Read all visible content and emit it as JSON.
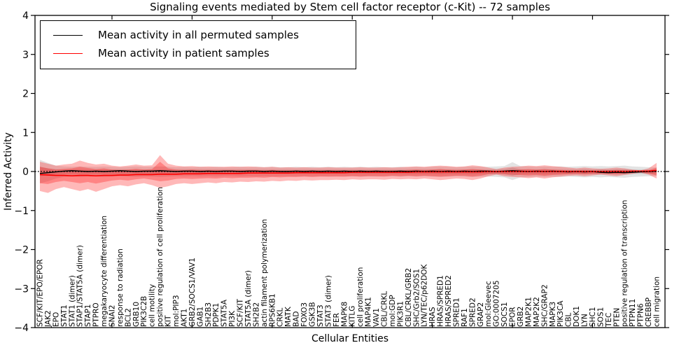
{
  "figure": {
    "title": "Signaling events mediated by Stem cell factor receptor (c-Kit) -- 72 samples",
    "xlabel": "Cellular Entities",
    "ylabel": "Inferred Activity",
    "legend": [
      {
        "label": "Mean activity in all permuted samples",
        "color": "#000000"
      },
      {
        "label": "Mean activity in patient samples",
        "color": "#ff0000"
      }
    ]
  },
  "chart_data": {
    "type": "line",
    "title": "Signaling events mediated by Stem cell factor receptor (c-Kit) -- 72 samples",
    "xlabel": "Cellular Entities",
    "ylabel": "Inferred Activity",
    "ylim": [
      -4,
      4
    ],
    "yticks": [
      -4,
      -3,
      -2,
      -1,
      0,
      1,
      2,
      3,
      4
    ],
    "ytick_labels": [
      "−4",
      "−3",
      "−2",
      "−1",
      "0",
      "1",
      "2",
      "3",
      "4"
    ],
    "xticks": [
      10,
      20,
      30,
      40,
      50,
      60,
      70
    ],
    "grid": false,
    "legend_position": "upper left",
    "zero_line": {
      "style": "dotted",
      "color": "#000000",
      "y": 0
    },
    "colors": {
      "permuted_line": "#000000",
      "patient_line": "#ff0000",
      "permuted_band": "rgba(0,0,0,0.11)",
      "patient_band": "rgba(255,0,0,0.28)"
    },
    "categories": [
      "SCF/KIT/EPO/EPOR",
      "JAK2",
      "EPO",
      "STAT1",
      "STAT1 (dimer)",
      "STAP1/STAT5A (dimer)",
      "STAP1",
      "PTPRO",
      "megakaryocyte differentiation",
      "SNAI2",
      "response to radiation",
      "BCL2",
      "GRB10",
      "PIK3C2B",
      "cell motility",
      "positive regulation of cell proliferation",
      "KIT",
      "mol:PIP3",
      "AKT1",
      "GRB2/SOCS1/VAV1",
      "GAB1",
      "SH2B3",
      "PDPK1",
      "STAT5A",
      "PI3K",
      "SCF/KIT",
      "STAT5A (dimer)",
      "SH2B2",
      "actin filament polymerization",
      "RPS6KB1",
      "CRKL",
      "MATK",
      "BAD",
      "FOXO3",
      "GSK3B",
      "STAT3",
      "STAT3 (dimer)",
      "FER",
      "MAPK8",
      "KITLG",
      "cell proliferation",
      "MAP4K1",
      "VAV1",
      "CBL/CRKL",
      "mol:GDP",
      "PIK3R1",
      "CBL/CRKL/GRB2",
      "SHC/Grb2/SOS1",
      "LYN/TEC/p62DOK",
      "HRAS",
      "HRAS/SPRED1",
      "HRAS/SPRED2",
      "SPRED1",
      "RAF1",
      "SPRED2",
      "GRAP2",
      "mol:Gleevec",
      "GO:0007205",
      "SOCS1",
      "EPOR",
      "GRB2",
      "MAP2K1",
      "MAP2K2",
      "SHC/GRAP2",
      "MAPK3",
      "PIK3CA",
      "CBL",
      "DOK1",
      "LYN",
      "SHC1",
      "SOS1",
      "TEC",
      "PTEN",
      "positive regulation of transcription",
      "PTPN11",
      "PTPN6",
      "CREBBP",
      "cell migration"
    ],
    "series": [
      {
        "name": "Mean activity in all permuted samples",
        "color": "#000000",
        "values": [
          -0.05,
          -0.03,
          -0.01,
          0.01,
          0.02,
          0.01,
          0.0,
          0.01,
          0.0,
          0.01,
          0.02,
          0.01,
          0.0,
          0.01,
          0.01,
          0.02,
          0.01,
          0.0,
          0.01,
          0.01,
          0.0,
          0.01,
          0.0,
          0.01,
          0.01,
          0.0,
          0.01,
          0.01,
          0.0,
          0.01,
          0.0,
          0.0,
          0.01,
          0.0,
          0.01,
          0.0,
          0.01,
          0.0,
          0.01,
          0.0,
          0.01,
          0.0,
          0.01,
          0.0,
          0.0,
          0.01,
          0.0,
          0.01,
          0.0,
          0.01,
          0.0,
          0.01,
          0.0,
          0.01,
          0.0,
          0.01,
          0.01,
          0.0,
          0.01,
          0.02,
          0.01,
          0.0,
          0.01,
          0.0,
          0.01,
          0.0,
          -0.01,
          0.0,
          -0.01,
          0.0,
          -0.02,
          -0.03,
          -0.02,
          -0.03,
          -0.02,
          -0.01,
          0.0,
          0.01
        ]
      },
      {
        "name": "Mean activity in patient samples",
        "color": "#ff0000",
        "values": [
          -0.08,
          -0.09,
          -0.1,
          -0.1,
          -0.11,
          -0.1,
          -0.1,
          -0.11,
          -0.1,
          -0.1,
          -0.09,
          -0.09,
          -0.08,
          -0.08,
          -0.08,
          -0.07,
          -0.07,
          -0.07,
          -0.06,
          -0.06,
          -0.06,
          -0.05,
          -0.05,
          -0.05,
          -0.05,
          -0.05,
          -0.04,
          -0.04,
          -0.04,
          -0.04,
          -0.04,
          -0.04,
          -0.03,
          -0.03,
          -0.03,
          -0.03,
          -0.03,
          -0.03,
          -0.03,
          -0.02,
          -0.02,
          -0.02,
          -0.02,
          -0.02,
          -0.02,
          -0.02,
          -0.02,
          -0.01,
          -0.01,
          -0.01,
          -0.01,
          -0.01,
          -0.01,
          -0.01,
          -0.01,
          -0.01,
          0.0,
          0.0,
          0.0,
          0.0,
          0.0,
          0.0,
          0.0,
          0.0,
          0.0,
          0.0,
          0.0,
          0.0,
          0.0,
          0.0,
          0.0,
          0.0,
          0.0,
          0.0,
          0.01,
          0.01,
          0.01,
          0.03
        ]
      }
    ],
    "bands": [
      {
        "name": "permuted-outer",
        "color": "rgba(0,0,0,0.11)",
        "upper": [
          0.3,
          0.22,
          0.15,
          0.13,
          0.12,
          0.13,
          0.12,
          0.12,
          0.13,
          0.12,
          0.11,
          0.12,
          0.13,
          0.12,
          0.12,
          0.13,
          0.12,
          0.11,
          0.12,
          0.11,
          0.12,
          0.11,
          0.12,
          0.11,
          0.11,
          0.12,
          0.11,
          0.12,
          0.11,
          0.12,
          0.11,
          0.11,
          0.12,
          0.11,
          0.12,
          0.11,
          0.12,
          0.11,
          0.12,
          0.11,
          0.12,
          0.11,
          0.12,
          0.11,
          0.11,
          0.12,
          0.11,
          0.12,
          0.11,
          0.12,
          0.13,
          0.12,
          0.11,
          0.12,
          0.13,
          0.12,
          0.12,
          0.13,
          0.14,
          0.24,
          0.14,
          0.13,
          0.12,
          0.13,
          0.12,
          0.13,
          0.12,
          0.13,
          0.14,
          0.13,
          0.14,
          0.13,
          0.14,
          0.15,
          0.13,
          0.12,
          0.11,
          0.1
        ],
        "lower": [
          -0.3,
          -0.25,
          -0.18,
          -0.14,
          -0.13,
          -0.14,
          -0.13,
          -0.13,
          -0.14,
          -0.13,
          -0.12,
          -0.13,
          -0.14,
          -0.13,
          -0.13,
          -0.14,
          -0.13,
          -0.12,
          -0.13,
          -0.12,
          -0.13,
          -0.12,
          -0.13,
          -0.12,
          -0.12,
          -0.13,
          -0.12,
          -0.13,
          -0.12,
          -0.13,
          -0.12,
          -0.12,
          -0.13,
          -0.12,
          -0.13,
          -0.12,
          -0.13,
          -0.12,
          -0.13,
          -0.12,
          -0.13,
          -0.12,
          -0.13,
          -0.12,
          -0.12,
          -0.13,
          -0.12,
          -0.13,
          -0.12,
          -0.13,
          -0.14,
          -0.13,
          -0.12,
          -0.13,
          -0.14,
          -0.13,
          -0.13,
          -0.14,
          -0.15,
          -0.22,
          -0.15,
          -0.14,
          -0.13,
          -0.14,
          -0.13,
          -0.14,
          -0.13,
          -0.14,
          -0.15,
          -0.14,
          -0.15,
          -0.14,
          -0.15,
          -0.16,
          -0.14,
          -0.13,
          -0.12,
          -0.11
        ]
      },
      {
        "name": "permuted-inner",
        "color": "rgba(0,0,0,0.11)",
        "upper": [
          0.12,
          0.08,
          0.06,
          0.05,
          0.05,
          0.05,
          0.05,
          0.05,
          0.05,
          0.05,
          0.05,
          0.05,
          0.05,
          0.05,
          0.05,
          0.05,
          0.05,
          0.05,
          0.05,
          0.05,
          0.05,
          0.05,
          0.05,
          0.05,
          0.05,
          0.05,
          0.05,
          0.05,
          0.05,
          0.05,
          0.05,
          0.05,
          0.05,
          0.05,
          0.05,
          0.05,
          0.05,
          0.05,
          0.05,
          0.05,
          0.05,
          0.05,
          0.05,
          0.05,
          0.05,
          0.05,
          0.05,
          0.05,
          0.05,
          0.05,
          0.06,
          0.05,
          0.05,
          0.05,
          0.06,
          0.05,
          0.05,
          0.06,
          0.06,
          0.1,
          0.06,
          0.05,
          0.05,
          0.06,
          0.05,
          0.05,
          0.05,
          0.05,
          0.06,
          0.05,
          0.06,
          0.05,
          0.06,
          0.06,
          0.05,
          0.05,
          0.05,
          0.04
        ],
        "lower": [
          -0.12,
          -0.09,
          -0.07,
          -0.06,
          -0.06,
          -0.06,
          -0.06,
          -0.06,
          -0.06,
          -0.06,
          -0.06,
          -0.06,
          -0.06,
          -0.06,
          -0.06,
          -0.06,
          -0.06,
          -0.06,
          -0.06,
          -0.06,
          -0.06,
          -0.06,
          -0.06,
          -0.06,
          -0.06,
          -0.06,
          -0.06,
          -0.06,
          -0.06,
          -0.06,
          -0.06,
          -0.06,
          -0.06,
          -0.06,
          -0.06,
          -0.06,
          -0.06,
          -0.06,
          -0.06,
          -0.06,
          -0.06,
          -0.06,
          -0.06,
          -0.06,
          -0.06,
          -0.06,
          -0.06,
          -0.06,
          -0.06,
          -0.06,
          -0.07,
          -0.06,
          -0.06,
          -0.06,
          -0.07,
          -0.06,
          -0.06,
          -0.07,
          -0.07,
          -0.11,
          -0.07,
          -0.06,
          -0.06,
          -0.07,
          -0.06,
          -0.06,
          -0.06,
          -0.06,
          -0.07,
          -0.06,
          -0.07,
          -0.06,
          -0.07,
          -0.07,
          -0.06,
          -0.06,
          -0.06,
          -0.05
        ]
      },
      {
        "name": "patient-outer",
        "color": "rgba(255,0,0,0.28)",
        "upper": [
          0.25,
          0.2,
          0.15,
          0.18,
          0.2,
          0.28,
          0.22,
          0.18,
          0.2,
          0.15,
          0.13,
          0.15,
          0.18,
          0.15,
          0.16,
          0.42,
          0.2,
          0.15,
          0.13,
          0.14,
          0.12,
          0.13,
          0.12,
          0.12,
          0.13,
          0.12,
          0.13,
          0.12,
          0.11,
          0.12,
          0.1,
          0.11,
          0.1,
          0.11,
          0.1,
          0.1,
          0.11,
          0.1,
          0.1,
          0.1,
          0.11,
          0.1,
          0.1,
          0.11,
          0.1,
          0.11,
          0.12,
          0.13,
          0.12,
          0.14,
          0.15,
          0.14,
          0.12,
          0.13,
          0.16,
          0.14,
          0.1,
          0.06,
          0.1,
          0.12,
          0.13,
          0.15,
          0.14,
          0.16,
          0.14,
          0.12,
          0.1,
          0.08,
          0.1,
          0.08,
          0.07,
          0.08,
          0.1,
          0.08,
          0.05,
          0.03,
          0.08,
          0.22
        ],
        "lower": [
          -0.5,
          -0.55,
          -0.45,
          -0.4,
          -0.45,
          -0.5,
          -0.45,
          -0.52,
          -0.45,
          -0.38,
          -0.35,
          -0.38,
          -0.33,
          -0.3,
          -0.35,
          -0.42,
          -0.38,
          -0.32,
          -0.3,
          -0.32,
          -0.3,
          -0.28,
          -0.3,
          -0.27,
          -0.28,
          -0.26,
          -0.27,
          -0.25,
          -0.26,
          -0.24,
          -0.25,
          -0.23,
          -0.24,
          -0.22,
          -0.23,
          -0.22,
          -0.22,
          -0.21,
          -0.22,
          -0.2,
          -0.21,
          -0.2,
          -0.2,
          -0.21,
          -0.19,
          -0.2,
          -0.19,
          -0.2,
          -0.18,
          -0.2,
          -0.22,
          -0.2,
          -0.18,
          -0.19,
          -0.22,
          -0.18,
          -0.12,
          -0.08,
          -0.12,
          -0.14,
          -0.15,
          -0.17,
          -0.15,
          -0.18,
          -0.15,
          -0.13,
          -0.11,
          -0.1,
          -0.12,
          -0.1,
          -0.08,
          -0.1,
          -0.12,
          -0.09,
          -0.06,
          -0.03,
          -0.08,
          -0.18
        ]
      },
      {
        "name": "patient-inner",
        "color": "rgba(255,0,0,0.28)",
        "upper": [
          0.12,
          0.08,
          0.05,
          0.07,
          0.08,
          0.12,
          0.09,
          0.06,
          0.08,
          0.05,
          0.04,
          0.05,
          0.07,
          0.05,
          0.06,
          0.25,
          0.08,
          0.05,
          0.04,
          0.05,
          0.04,
          0.04,
          0.04,
          0.04,
          0.04,
          0.04,
          0.04,
          0.04,
          0.03,
          0.04,
          0.03,
          0.03,
          0.03,
          0.03,
          0.03,
          0.03,
          0.03,
          0.03,
          0.03,
          0.03,
          0.03,
          0.03,
          0.03,
          0.03,
          0.03,
          0.03,
          0.04,
          0.05,
          0.04,
          0.05,
          0.06,
          0.05,
          0.04,
          0.05,
          0.06,
          0.05,
          0.03,
          0.02,
          0.03,
          0.04,
          0.05,
          0.06,
          0.05,
          0.06,
          0.05,
          0.04,
          0.03,
          0.03,
          0.03,
          0.03,
          0.02,
          0.03,
          0.04,
          0.03,
          0.02,
          0.01,
          0.03,
          0.1
        ],
        "lower": [
          -0.3,
          -0.32,
          -0.27,
          -0.24,
          -0.27,
          -0.3,
          -0.27,
          -0.31,
          -0.27,
          -0.23,
          -0.21,
          -0.23,
          -0.2,
          -0.18,
          -0.21,
          -0.25,
          -0.23,
          -0.19,
          -0.18,
          -0.19,
          -0.18,
          -0.17,
          -0.18,
          -0.16,
          -0.17,
          -0.16,
          -0.16,
          -0.15,
          -0.16,
          -0.14,
          -0.15,
          -0.14,
          -0.14,
          -0.13,
          -0.14,
          -0.13,
          -0.13,
          -0.13,
          -0.13,
          -0.12,
          -0.13,
          -0.12,
          -0.12,
          -0.13,
          -0.11,
          -0.12,
          -0.11,
          -0.12,
          -0.11,
          -0.12,
          -0.13,
          -0.12,
          -0.11,
          -0.11,
          -0.13,
          -0.11,
          -0.07,
          -0.05,
          -0.07,
          -0.08,
          -0.09,
          -0.1,
          -0.09,
          -0.11,
          -0.09,
          -0.08,
          -0.07,
          -0.06,
          -0.07,
          -0.06,
          -0.05,
          -0.06,
          -0.07,
          -0.05,
          -0.03,
          -0.02,
          -0.05,
          -0.1
        ]
      }
    ]
  }
}
